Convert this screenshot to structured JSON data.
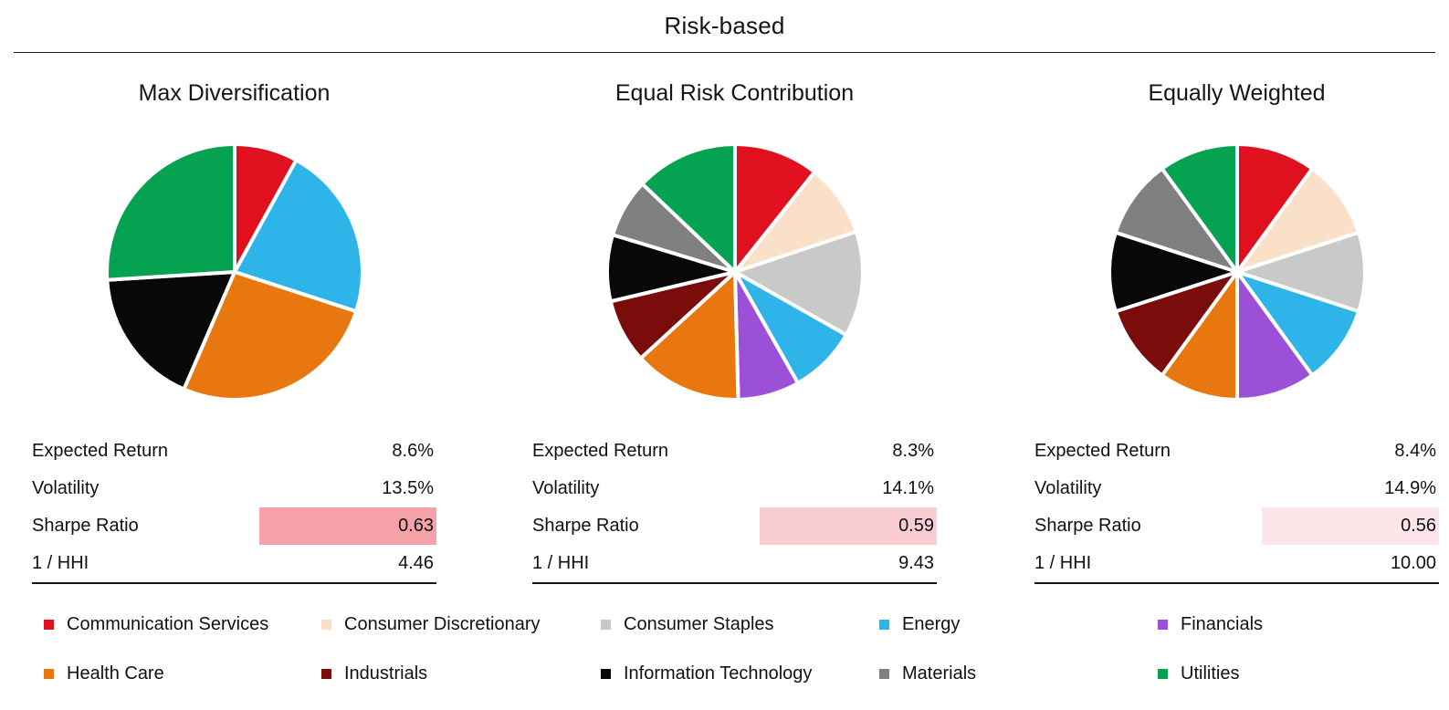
{
  "header": {
    "title": "Risk-based"
  },
  "sectors": [
    {
      "name": "Communication Services",
      "color": "#E1101E"
    },
    {
      "name": "Consumer Discretionary",
      "color": "#FAE0C8"
    },
    {
      "name": "Consumer Staples",
      "color": "#C9C9C9"
    },
    {
      "name": "Energy",
      "color": "#2FB4E9"
    },
    {
      "name": "Financials",
      "color": "#9C50D7"
    },
    {
      "name": "Health Care",
      "color": "#E8770F"
    },
    {
      "name": "Industrials",
      "color": "#7A0C0C"
    },
    {
      "name": "Information Technology",
      "color": "#080808"
    },
    {
      "name": "Materials",
      "color": "#808080"
    },
    {
      "name": "Utilities",
      "color": "#04A251"
    }
  ],
  "table": {
    "row_labels": [
      "Expected Return",
      "Volatility",
      "Sharpe Ratio",
      "1 / HHI"
    ],
    "sharpe_row_index": 2
  },
  "chart_data": [
    {
      "type": "pie",
      "title": "Max Diversification",
      "start_angle": "12-oclock-clockwise",
      "weights": [
        {
          "sector": "Communication Services",
          "pct": 8
        },
        {
          "sector": "Energy",
          "pct": 22
        },
        {
          "sector": "Health Care",
          "pct": 26.5
        },
        {
          "sector": "Information Technology",
          "pct": 17.5
        },
        {
          "sector": "Utilities",
          "pct": 26
        }
      ],
      "stats_values": [
        "8.6%",
        "13.5%",
        "0.63",
        "4.46"
      ],
      "sharpe_highlight": "#F5A2A8"
    },
    {
      "type": "pie",
      "title": "Equal Risk Contribution",
      "start_angle": "12-oclock-clockwise",
      "weights": [
        {
          "sector": "Communication Services",
          "pct": 10.7
        },
        {
          "sector": "Consumer Discretionary",
          "pct": 9.2
        },
        {
          "sector": "Consumer Staples",
          "pct": 13.3
        },
        {
          "sector": "Energy",
          "pct": 8.6
        },
        {
          "sector": "Financials",
          "pct": 7.8
        },
        {
          "sector": "Health Care",
          "pct": 13.6
        },
        {
          "sector": "Industrials",
          "pct": 8.1
        },
        {
          "sector": "Information Technology",
          "pct": 8.4
        },
        {
          "sector": "Materials",
          "pct": 7.4
        },
        {
          "sector": "Utilities",
          "pct": 12.9
        }
      ],
      "stats_values": [
        "8.3%",
        "14.1%",
        "0.59",
        "9.43"
      ],
      "sharpe_highlight": "#FACDD3"
    },
    {
      "type": "pie",
      "title": "Equally Weighted",
      "start_angle": "12-oclock-clockwise",
      "weights": [
        {
          "sector": "Communication Services",
          "pct": 10
        },
        {
          "sector": "Consumer Discretionary",
          "pct": 10
        },
        {
          "sector": "Consumer Staples",
          "pct": 10
        },
        {
          "sector": "Energy",
          "pct": 10
        },
        {
          "sector": "Financials",
          "pct": 10
        },
        {
          "sector": "Health Care",
          "pct": 10
        },
        {
          "sector": "Industrials",
          "pct": 10
        },
        {
          "sector": "Information Technology",
          "pct": 10
        },
        {
          "sector": "Materials",
          "pct": 10
        },
        {
          "sector": "Utilities",
          "pct": 10
        }
      ],
      "stats_values": [
        "8.4%",
        "14.9%",
        "0.56",
        "10.00"
      ],
      "sharpe_highlight": "#FBE5E8"
    }
  ],
  "legend": {
    "rows": 2,
    "columns": 5,
    "items": [
      "Communication Services",
      "Consumer Discretionary",
      "Consumer Staples",
      "Energy",
      "Financials",
      "Health Care",
      "Industrials",
      "Information Technology",
      "Materials",
      "Utilities"
    ]
  }
}
